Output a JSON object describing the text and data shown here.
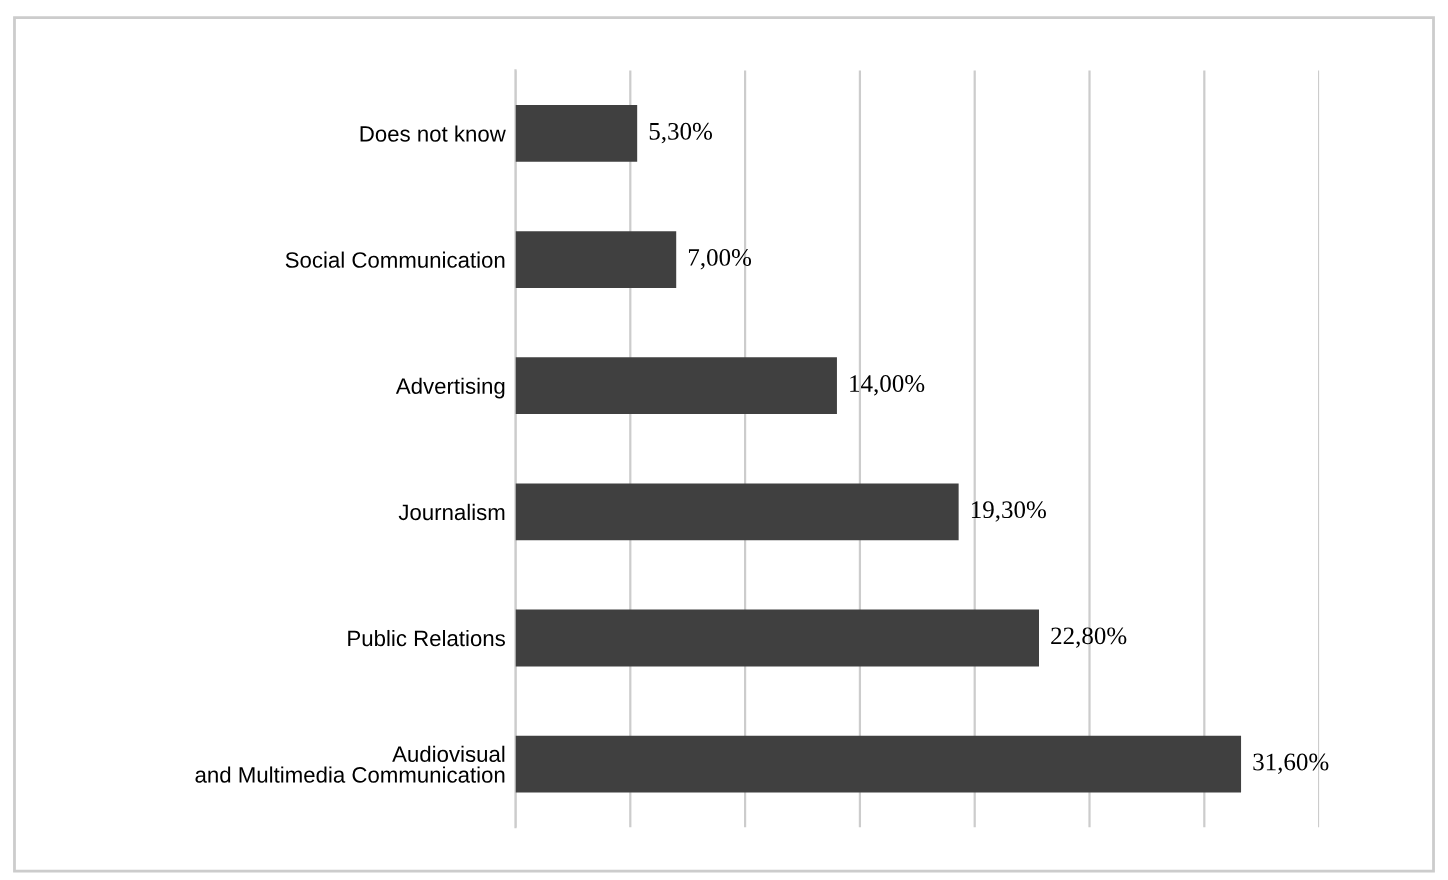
{
  "chart_data": {
    "type": "bar",
    "orientation": "horizontal",
    "categories": [
      "Does not know",
      "Social Communication",
      "Advertising",
      "Journalism",
      "Public Relations",
      "Audiovisual\nand Multimedia Communication"
    ],
    "values": [
      5.3,
      7.0,
      14.0,
      19.3,
      22.8,
      31.6
    ],
    "value_labels": [
      "5,30%",
      "7,00%",
      "14,00%",
      "19,30%",
      "22,80%",
      "31,60%"
    ],
    "color": "#404040",
    "xlim": [
      0,
      35
    ],
    "xticks": [
      {
        "value": 0,
        "label": null
      },
      {
        "value": 5,
        "label": null
      },
      {
        "value": 10,
        "label": null
      },
      {
        "value": 15,
        "label": null
      },
      {
        "value": 20,
        "label": null
      },
      {
        "value": 25,
        "label": null
      },
      {
        "value": 30,
        "label": null
      },
      {
        "value": 35,
        "label": null
      }
    ],
    "tick_labels": "y",
    "grid": "x",
    "legend": false
  }
}
